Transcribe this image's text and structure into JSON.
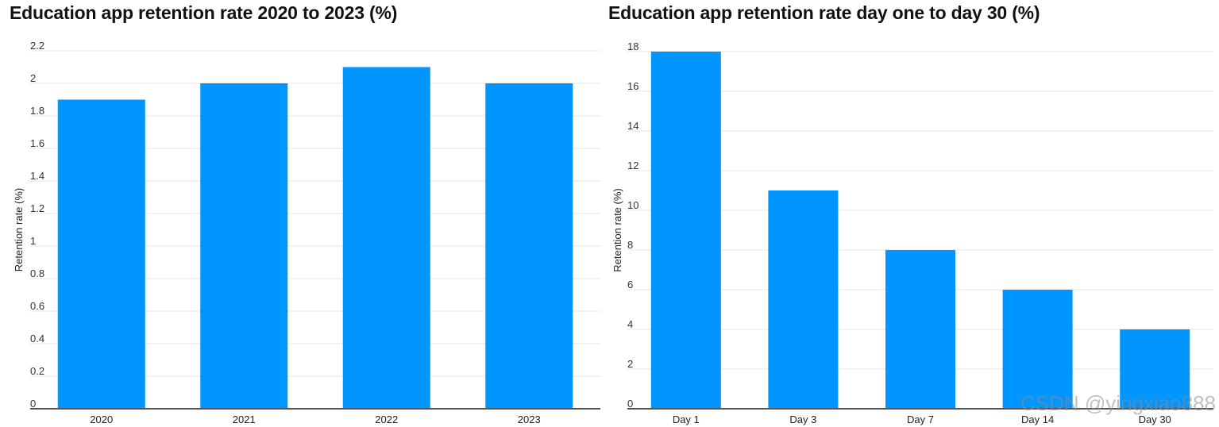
{
  "charts": [
    {
      "id": "left",
      "chart_data": {
        "type": "bar",
        "title": "Education app retention rate 2020 to 2023 (%)",
        "xlabel": "",
        "ylabel": "Retention rate (%)",
        "categories": [
          "2020",
          "2021",
          "2022",
          "2023"
        ],
        "values": [
          1.9,
          2.0,
          2.1,
          2.0
        ],
        "ylim": [
          0,
          2.2
        ],
        "yticks": [
          0,
          0.2,
          0.4,
          0.6,
          0.8,
          1,
          1.2,
          1.4,
          1.6,
          1.8,
          2,
          2.2
        ],
        "grid": true,
        "bar_color": "#0095ff"
      }
    },
    {
      "id": "right",
      "chart_data": {
        "type": "bar",
        "title": "Education app retention rate day one to day 30 (%)",
        "xlabel": "",
        "ylabel": "Retention rate (%)",
        "categories": [
          "Day 1",
          "Day 3",
          "Day 7",
          "Day 14",
          "Day 30"
        ],
        "values": [
          18,
          11,
          8,
          6,
          4
        ],
        "ylim": [
          0,
          18
        ],
        "yticks": [
          0,
          2,
          4,
          6,
          8,
          10,
          12,
          14,
          16,
          18
        ],
        "grid": true,
        "bar_color": "#0095ff"
      }
    }
  ],
  "watermark": "CSDN @yingxiao888"
}
